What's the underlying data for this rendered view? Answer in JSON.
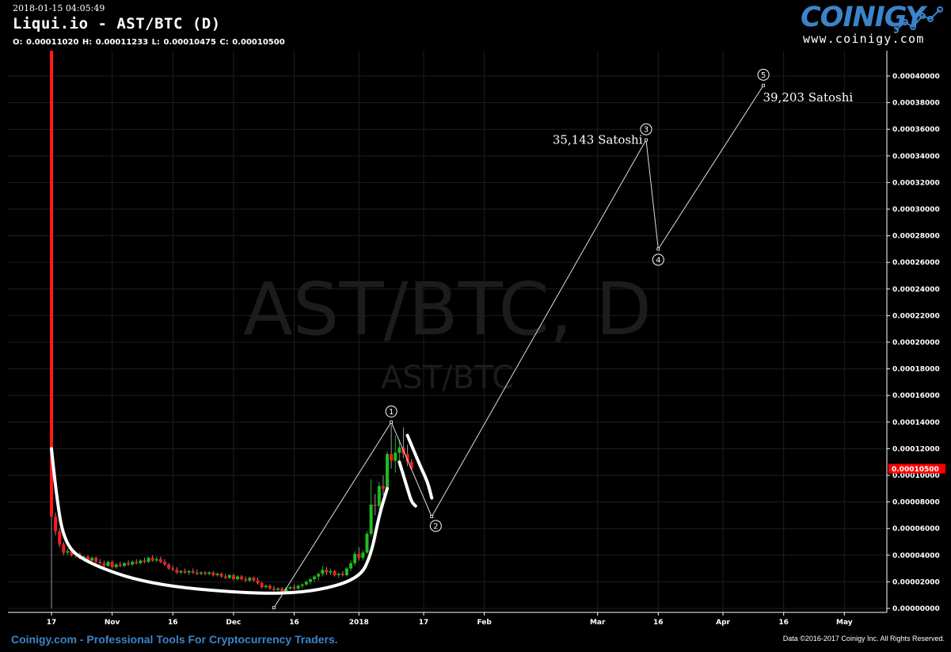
{
  "header": {
    "timestamp": "2018-01-15 04:05:49",
    "title": "Liqui.io - AST/BTC (D)",
    "ohlc": [
      {
        "label": "O:",
        "value": "0.00011020"
      },
      {
        "label": "H:",
        "value": "0.00011233"
      },
      {
        "label": "L:",
        "value": "0.00010475"
      },
      {
        "label": "C:",
        "value": "0.00010500"
      }
    ]
  },
  "logo": {
    "brand": "COINIGY",
    "url": "www.coinigy.com"
  },
  "footer": {
    "tagline": "Coinigy.com - Professional Tools For Cryptocurrency Traders.",
    "copyright": "Data ©2016-2017 Coinigy Inc. All Rights Reserved."
  },
  "watermark": {
    "main": "AST/BTC, D",
    "sub": "AST/BTC"
  },
  "colors": {
    "up": "#22bb22",
    "down": "#ff1a1a",
    "price_tag": "#ff0000",
    "brand": "#3b84c9",
    "grid": "#1e1e1e"
  },
  "chart_data": {
    "type": "candlestick",
    "x_ticks": [
      {
        "label": "17",
        "date": "2017-10-17"
      },
      {
        "label": "Nov",
        "date": "2017-11-01"
      },
      {
        "label": "16",
        "date": "2017-11-16"
      },
      {
        "label": "Dec",
        "date": "2017-12-01"
      },
      {
        "label": "16",
        "date": "2017-12-16"
      },
      {
        "label": "2018",
        "date": "2018-01-01"
      },
      {
        "label": "17",
        "date": "2018-01-17"
      },
      {
        "label": "Feb",
        "date": "2018-02-01"
      },
      {
        "label": "Mar",
        "date": "2018-03-01"
      },
      {
        "label": "16",
        "date": "2018-03-16"
      },
      {
        "label": "Apr",
        "date": "2018-04-01"
      },
      {
        "label": "16",
        "date": "2018-04-16"
      },
      {
        "label": "May",
        "date": "2018-05-01"
      }
    ],
    "y_ticks": [
      "0.00000000",
      "0.00002000",
      "0.00004000",
      "0.00006000",
      "0.00008000",
      "0.00010000",
      "0.00012000",
      "0.00014000",
      "0.00016000",
      "0.00018000",
      "0.00020000",
      "0.00022000",
      "0.00024000",
      "0.00026000",
      "0.00028000",
      "0.00030000",
      "0.00032000",
      "0.00034000",
      "0.00036000",
      "0.00038000",
      "0.00040000"
    ],
    "ylim": [
      0,
      0.0004
    ],
    "last_price": {
      "label": "0.00010500",
      "value": 0.000105
    },
    "candles": [
      {
        "date": "2017-10-17",
        "o": 0.00042,
        "h": 0.00042,
        "l": 0.0,
        "c": 6.9e-05
      },
      {
        "date": "2017-10-18",
        "o": 6.9e-05,
        "h": 7.2e-05,
        "l": 5.5e-05,
        "c": 5.8e-05
      },
      {
        "date": "2017-10-19",
        "o": 5.8e-05,
        "h": 6e-05,
        "l": 4.6e-05,
        "c": 4.8e-05
      },
      {
        "date": "2017-10-20",
        "o": 4.8e-05,
        "h": 5e-05,
        "l": 4e-05,
        "c": 4.2e-05
      },
      {
        "date": "2017-10-21",
        "o": 4.2e-05,
        "h": 4.5e-05,
        "l": 4e-05,
        "c": 4.3e-05
      },
      {
        "date": "2017-10-22",
        "o": 4.3e-05,
        "h": 4.4e-05,
        "l": 3.9e-05,
        "c": 4e-05
      },
      {
        "date": "2017-10-23",
        "o": 4e-05,
        "h": 4.2e-05,
        "l": 3.8e-05,
        "c": 4.1e-05
      },
      {
        "date": "2017-10-24",
        "o": 4.1e-05,
        "h": 4.2e-05,
        "l": 3.7e-05,
        "c": 3.8e-05
      },
      {
        "date": "2017-10-25",
        "o": 3.8e-05,
        "h": 4e-05,
        "l": 3.6e-05,
        "c": 3.9e-05
      },
      {
        "date": "2017-10-26",
        "o": 3.9e-05,
        "h": 4e-05,
        "l": 3.5e-05,
        "c": 3.6e-05
      },
      {
        "date": "2017-10-27",
        "o": 3.6e-05,
        "h": 3.9e-05,
        "l": 3.5e-05,
        "c": 3.8e-05
      },
      {
        "date": "2017-10-28",
        "o": 3.8e-05,
        "h": 3.9e-05,
        "l": 3.4e-05,
        "c": 3.5e-05
      },
      {
        "date": "2017-10-29",
        "o": 3.5e-05,
        "h": 3.7e-05,
        "l": 3.3e-05,
        "c": 3.4e-05
      },
      {
        "date": "2017-10-30",
        "o": 3.4e-05,
        "h": 3.6e-05,
        "l": 3.1e-05,
        "c": 3.2e-05
      },
      {
        "date": "2017-10-31",
        "o": 3.2e-05,
        "h": 3.6e-05,
        "l": 3.1e-05,
        "c": 3.5e-05
      },
      {
        "date": "2017-11-01",
        "o": 3.5e-05,
        "h": 3.6e-05,
        "l": 3e-05,
        "c": 3.1e-05
      },
      {
        "date": "2017-11-02",
        "o": 3.1e-05,
        "h": 3.4e-05,
        "l": 3e-05,
        "c": 3.3e-05
      },
      {
        "date": "2017-11-03",
        "o": 3.3e-05,
        "h": 3.5e-05,
        "l": 3.1e-05,
        "c": 3.2e-05
      },
      {
        "date": "2017-11-04",
        "o": 3.2e-05,
        "h": 3.5e-05,
        "l": 3.1e-05,
        "c": 3.4e-05
      },
      {
        "date": "2017-11-05",
        "o": 3.4e-05,
        "h": 3.6e-05,
        "l": 3.2e-05,
        "c": 3.3e-05
      },
      {
        "date": "2017-11-06",
        "o": 3.3e-05,
        "h": 3.6e-05,
        "l": 3.2e-05,
        "c": 3.5e-05
      },
      {
        "date": "2017-11-07",
        "o": 3.5e-05,
        "h": 3.7e-05,
        "l": 3.3e-05,
        "c": 3.4e-05
      },
      {
        "date": "2017-11-08",
        "o": 3.4e-05,
        "h": 3.7e-05,
        "l": 3.3e-05,
        "c": 3.6e-05
      },
      {
        "date": "2017-11-09",
        "o": 3.6e-05,
        "h": 3.8e-05,
        "l": 3.4e-05,
        "c": 3.5e-05
      },
      {
        "date": "2017-11-10",
        "o": 3.5e-05,
        "h": 3.9e-05,
        "l": 3.4e-05,
        "c": 3.8e-05
      },
      {
        "date": "2017-11-11",
        "o": 3.8e-05,
        "h": 4e-05,
        "l": 3.5e-05,
        "c": 3.6e-05
      },
      {
        "date": "2017-11-12",
        "o": 3.6e-05,
        "h": 3.9e-05,
        "l": 3.5e-05,
        "c": 3.7e-05
      },
      {
        "date": "2017-11-13",
        "o": 3.7e-05,
        "h": 3.9e-05,
        "l": 3.4e-05,
        "c": 3.5e-05
      },
      {
        "date": "2017-11-14",
        "o": 3.5e-05,
        "h": 3.7e-05,
        "l": 3.2e-05,
        "c": 3.3e-05
      },
      {
        "date": "2017-11-15",
        "o": 3.3e-05,
        "h": 3.4e-05,
        "l": 2.9e-05,
        "c": 3e-05
      },
      {
        "date": "2017-11-16",
        "o": 3e-05,
        "h": 3.2e-05,
        "l": 2.8e-05,
        "c": 2.9e-05
      },
      {
        "date": "2017-11-17",
        "o": 2.9e-05,
        "h": 3.1e-05,
        "l": 2.6e-05,
        "c": 2.7e-05
      },
      {
        "date": "2017-11-18",
        "o": 2.7e-05,
        "h": 2.9e-05,
        "l": 2.6e-05,
        "c": 2.8e-05
      },
      {
        "date": "2017-11-19",
        "o": 2.8e-05,
        "h": 3e-05,
        "l": 2.6e-05,
        "c": 2.7e-05
      },
      {
        "date": "2017-11-20",
        "o": 2.7e-05,
        "h": 2.9e-05,
        "l": 2.5e-05,
        "c": 2.8e-05
      },
      {
        "date": "2017-11-21",
        "o": 2.8e-05,
        "h": 3e-05,
        "l": 2.6e-05,
        "c": 2.7e-05
      },
      {
        "date": "2017-11-22",
        "o": 2.7e-05,
        "h": 2.9e-05,
        "l": 2.5e-05,
        "c": 2.6e-05
      },
      {
        "date": "2017-11-23",
        "o": 2.6e-05,
        "h": 2.8e-05,
        "l": 2.5e-05,
        "c": 2.7e-05
      },
      {
        "date": "2017-11-24",
        "o": 2.7e-05,
        "h": 2.8e-05,
        "l": 2.5e-05,
        "c": 2.6e-05
      },
      {
        "date": "2017-11-25",
        "o": 2.6e-05,
        "h": 2.8e-05,
        "l": 2.5e-05,
        "c": 2.7e-05
      },
      {
        "date": "2017-11-26",
        "o": 2.7e-05,
        "h": 2.8e-05,
        "l": 2.4e-05,
        "c": 2.5e-05
      },
      {
        "date": "2017-11-27",
        "o": 2.5e-05,
        "h": 2.7e-05,
        "l": 2.4e-05,
        "c": 2.6e-05
      },
      {
        "date": "2017-11-28",
        "o": 2.6e-05,
        "h": 2.7e-05,
        "l": 2.3e-05,
        "c": 2.4e-05
      },
      {
        "date": "2017-11-29",
        "o": 2.4e-05,
        "h": 2.6e-05,
        "l": 2.2e-05,
        "c": 2.3e-05
      },
      {
        "date": "2017-11-30",
        "o": 2.3e-05,
        "h": 2.6e-05,
        "l": 2.2e-05,
        "c": 2.5e-05
      },
      {
        "date": "2017-12-01",
        "o": 2.5e-05,
        "h": 2.6e-05,
        "l": 2.1e-05,
        "c": 2.2e-05
      },
      {
        "date": "2017-12-02",
        "o": 2.2e-05,
        "h": 2.5e-05,
        "l": 2.1e-05,
        "c": 2.4e-05
      },
      {
        "date": "2017-12-03",
        "o": 2.4e-05,
        "h": 2.5e-05,
        "l": 2.1e-05,
        "c": 2.2e-05
      },
      {
        "date": "2017-12-04",
        "o": 2.2e-05,
        "h": 2.4e-05,
        "l": 2e-05,
        "c": 2.1e-05
      },
      {
        "date": "2017-12-05",
        "o": 2.1e-05,
        "h": 2.4e-05,
        "l": 2e-05,
        "c": 2.3e-05
      },
      {
        "date": "2017-12-06",
        "o": 2.3e-05,
        "h": 2.4e-05,
        "l": 2e-05,
        "c": 2.1e-05
      },
      {
        "date": "2017-12-07",
        "o": 2.1e-05,
        "h": 2.3e-05,
        "l": 1.8e-05,
        "c": 1.9e-05
      },
      {
        "date": "2017-12-08",
        "o": 1.9e-05,
        "h": 2e-05,
        "l": 1.5e-05,
        "c": 1.6e-05
      },
      {
        "date": "2017-12-09",
        "o": 1.6e-05,
        "h": 1.8e-05,
        "l": 1.5e-05,
        "c": 1.7e-05
      },
      {
        "date": "2017-12-10",
        "o": 1.7e-05,
        "h": 1.8e-05,
        "l": 1.4e-05,
        "c": 1.5e-05
      },
      {
        "date": "2017-12-11",
        "o": 1.5e-05,
        "h": 1.7e-05,
        "l": 1.3e-05,
        "c": 1.4e-05
      },
      {
        "date": "2017-12-12",
        "o": 1.4e-05,
        "h": 1.6e-05,
        "l": 1.3e-05,
        "c": 1.5e-05
      },
      {
        "date": "2017-12-13",
        "o": 1.5e-05,
        "h": 1.6e-05,
        "l": 1.2e-05,
        "c": 1.3e-05
      },
      {
        "date": "2017-12-14",
        "o": 1.3e-05,
        "h": 1.6e-05,
        "l": 1.2e-05,
        "c": 1.5e-05
      },
      {
        "date": "2017-12-15",
        "o": 1.5e-05,
        "h": 1.7e-05,
        "l": 1.4e-05,
        "c": 1.6e-05
      },
      {
        "date": "2017-12-16",
        "o": 1.6e-05,
        "h": 1.8e-05,
        "l": 1.4e-05,
        "c": 1.5e-05
      },
      {
        "date": "2017-12-17",
        "o": 1.5e-05,
        "h": 1.8e-05,
        "l": 1.4e-05,
        "c": 1.7e-05
      },
      {
        "date": "2017-12-18",
        "o": 1.7e-05,
        "h": 1.9e-05,
        "l": 1.5e-05,
        "c": 1.8e-05
      },
      {
        "date": "2017-12-19",
        "o": 1.8e-05,
        "h": 2.1e-05,
        "l": 1.7e-05,
        "c": 2e-05
      },
      {
        "date": "2017-12-20",
        "o": 2e-05,
        "h": 2.3e-05,
        "l": 1.8e-05,
        "c": 2.2e-05
      },
      {
        "date": "2017-12-21",
        "o": 2.2e-05,
        "h": 2.5e-05,
        "l": 2e-05,
        "c": 2.4e-05
      },
      {
        "date": "2017-12-22",
        "o": 2.4e-05,
        "h": 2.7e-05,
        "l": 2.1e-05,
        "c": 2.6e-05
      },
      {
        "date": "2017-12-23",
        "o": 2.6e-05,
        "h": 3.2e-05,
        "l": 2.4e-05,
        "c": 2.9e-05
      },
      {
        "date": "2017-12-24",
        "o": 2.9e-05,
        "h": 3.1e-05,
        "l": 2.5e-05,
        "c": 2.7e-05
      },
      {
        "date": "2017-12-25",
        "o": 2.7e-05,
        "h": 3e-05,
        "l": 2.5e-05,
        "c": 2.8e-05
      },
      {
        "date": "2017-12-26",
        "o": 2.8e-05,
        "h": 2.9e-05,
        "l": 2.4e-05,
        "c": 2.5e-05
      },
      {
        "date": "2017-12-27",
        "o": 2.5e-05,
        "h": 2.7e-05,
        "l": 2.3e-05,
        "c": 2.6e-05
      },
      {
        "date": "2017-12-28",
        "o": 2.6e-05,
        "h": 2.8e-05,
        "l": 2.4e-05,
        "c": 2.5e-05
      },
      {
        "date": "2017-12-29",
        "o": 2.5e-05,
        "h": 3.1e-05,
        "l": 2.4e-05,
        "c": 3e-05
      },
      {
        "date": "2017-12-30",
        "o": 3e-05,
        "h": 3.6e-05,
        "l": 2.8e-05,
        "c": 3.4e-05
      },
      {
        "date": "2017-12-31",
        "o": 3.4e-05,
        "h": 4.3e-05,
        "l": 3.2e-05,
        "c": 4.1e-05
      },
      {
        "date": "2018-01-01",
        "o": 4.1e-05,
        "h": 4.6e-05,
        "l": 3.6e-05,
        "c": 3.8e-05
      },
      {
        "date": "2018-01-02",
        "o": 3.8e-05,
        "h": 4.4e-05,
        "l": 3.6e-05,
        "c": 4.2e-05
      },
      {
        "date": "2018-01-03",
        "o": 4.2e-05,
        "h": 5.8e-05,
        "l": 4.1e-05,
        "c": 5.6e-05
      },
      {
        "date": "2018-01-04",
        "o": 5.6e-05,
        "h": 9.7e-05,
        "l": 5.4e-05,
        "c": 7.8e-05
      },
      {
        "date": "2018-01-05",
        "o": 7.8e-05,
        "h": 8.6e-05,
        "l": 7e-05,
        "c": 7.7e-05
      },
      {
        "date": "2018-01-06",
        "o": 7.7e-05,
        "h": 9.5e-05,
        "l": 7.4e-05,
        "c": 9.2e-05
      },
      {
        "date": "2018-01-07",
        "o": 9.2e-05,
        "h": 0.0001,
        "l": 8.5e-05,
        "c": 9e-05
      },
      {
        "date": "2018-01-08",
        "o": 9e-05,
        "h": 0.000118,
        "l": 8.8e-05,
        "c": 0.000116
      },
      {
        "date": "2018-01-09",
        "o": 0.000116,
        "h": 0.000138,
        "l": 0.000105,
        "c": 0.000111
      },
      {
        "date": "2018-01-10",
        "o": 0.000111,
        "h": 0.00013,
        "l": 0.000102,
        "c": 0.000117
      },
      {
        "date": "2018-01-11",
        "o": 0.000117,
        "h": 0.000127,
        "l": 0.00011,
        "c": 0.000121
      },
      {
        "date": "2018-01-12",
        "o": 0.000121,
        "h": 0.000136,
        "l": 0.000113,
        "c": 0.000116
      },
      {
        "date": "2018-01-13",
        "o": 0.000116,
        "h": 0.000123,
        "l": 0.000107,
        "c": 0.00011
      },
      {
        "date": "2018-01-14",
        "o": 0.0001102,
        "h": 0.00011233,
        "l": 0.00010475,
        "c": 0.000105
      }
    ],
    "wave_path": [
      {
        "date": "2017-12-11",
        "value": 5e-07
      },
      {
        "date": "2018-01-09",
        "value": 0.00014
      },
      {
        "date": "2018-01-19",
        "value": 6.9e-05
      },
      {
        "date": "2018-03-13",
        "value": 0.000352
      },
      {
        "date": "2018-03-16",
        "value": 0.00027
      },
      {
        "date": "2018-04-11",
        "value": 0.000393
      }
    ],
    "wave_labels": [
      {
        "num": "1",
        "date": "2018-01-09",
        "value": 0.000148
      },
      {
        "num": "2",
        "date": "2018-01-20",
        "value": 6.2e-05
      },
      {
        "num": "3",
        "date": "2018-03-13",
        "value": 0.00036
      },
      {
        "num": "4",
        "date": "2018-03-16",
        "value": 0.000262
      },
      {
        "num": "5",
        "date": "2018-04-11",
        "value": 0.000401
      }
    ],
    "annotations": [
      {
        "text": "35,143 Satoshi",
        "date": "2018-03-01",
        "value": 0.000349
      },
      {
        "text": "39,203 Satoshi",
        "date": "2018-04-22",
        "value": 0.000381
      }
    ],
    "hand_strokes": [
      [
        [
          "2017-10-17",
          0.00012
        ],
        [
          "2017-10-18",
          9e-05
        ],
        [
          "2017-10-20",
          5e-05
        ],
        [
          "2017-10-25",
          3.5e-05
        ],
        [
          "2017-11-10",
          1.8e-05
        ],
        [
          "2017-12-05",
          1.1e-05
        ],
        [
          "2017-12-20",
          1.2e-05
        ],
        [
          "2018-01-01",
          2.2e-05
        ],
        [
          "2018-01-04",
          4e-05
        ],
        [
          "2018-01-06",
          7e-05
        ],
        [
          "2018-01-08",
          9e-05
        ]
      ],
      [
        [
          "2018-01-11",
          0.00011
        ],
        [
          "2018-01-12",
          0.0001
        ],
        [
          "2018-01-13",
          9e-05
        ],
        [
          "2018-01-14",
          8e-05
        ],
        [
          "2018-01-15",
          7.7e-05
        ]
      ],
      [
        [
          "2018-01-13",
          0.00013
        ],
        [
          "2018-01-16",
          0.000108
        ],
        [
          "2018-01-18",
          9.5e-05
        ],
        [
          "2018-01-19",
          8.3e-05
        ]
      ]
    ]
  }
}
